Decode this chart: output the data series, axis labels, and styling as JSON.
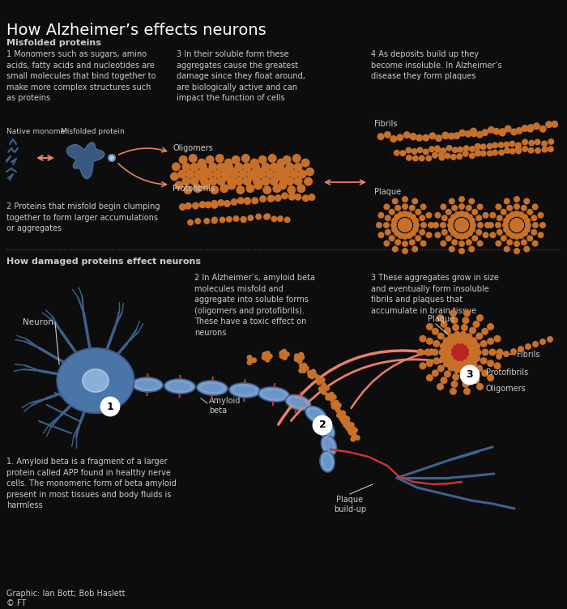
{
  "title": "How Alzheimer’s effects neurons",
  "bg_color": "#0d0d0d",
  "text_color": "#cccccc",
  "title_color": "#ffffff",
  "section1_label": "Misfolded proteins",
  "section2_label": "How damaged proteins effect neurons",
  "text1": "1 Monomers such as sugars, amino\nacids, fatty acids and nucleotides are\nsmall molecules that bind together to\nmake more complex structures such\nas proteins",
  "text2": "2 Proteins that misfold begin clumping\ntogether to form larger accumulations\nor aggregates",
  "text3": "3 In their soluble form these\naggregates cause the greatest\ndamage since they float around,\nare biologically active and can\nimpact the function of cells",
  "text4": "4 As deposits build up they\nbecome insoluble. In Alzheimer’s\ndisease they form plaques",
  "label_oligomers": "Oligomers",
  "label_protofibrils": "Protofibrils",
  "label_fibrils_top": "Fibrils",
  "label_plaque_top": "Plaque",
  "label_native": "Native monomer",
  "label_misfolded": "Misfolded protein",
  "neuron_label": "Neuron",
  "bottom_text1": "1. Amyloid beta is a fragment of a larger\nprotein called APP found in healthy nerve\ncells. The monomeric form of beta amyloid\npresent in most tissues and body fluids is\nharmless",
  "bottom_text2": "2 In Alzheimer’s, amyloid beta\nmolecules misfold and\naggregate into soluble forms\n(oligomers and protofibrils).\nThese have a toxic effect on\nneurons",
  "bottom_text3": "3 These aggregates grow in size\nand eventually form insoluble\nfibrils and plaques that\naccumulate in brain tissue",
  "label_plaque_b": "Plaque",
  "label_amyloid": "Amyloid\nbeta",
  "label_protofibrils_b": "Protofibrils",
  "label_oligomers_b": "Oligomers",
  "label_plaque_buildup": "Plaque\nbuild-up",
  "label_fibrils_b": "Fibrils",
  "credit": "Graphic: Ian Bott; Bob Haslett",
  "ft_credit": "© FT",
  "neuron_color": "#3d6190",
  "neuron_body_color": "#4a75a8",
  "neuron_light": "#6a95c8",
  "axon_color": "#7a9fcc",
  "axon_dark": "#3d6190",
  "orange_color": "#c8702a",
  "orange_dark": "#a85820",
  "pink_arrow": "#e8806a",
  "red_arrow_color": "#cc3333",
  "divider_color": "#555555",
  "plaque_red_color": "#bb2222",
  "white_color": "#ffffff",
  "blue_dendrite": "#3d6190"
}
